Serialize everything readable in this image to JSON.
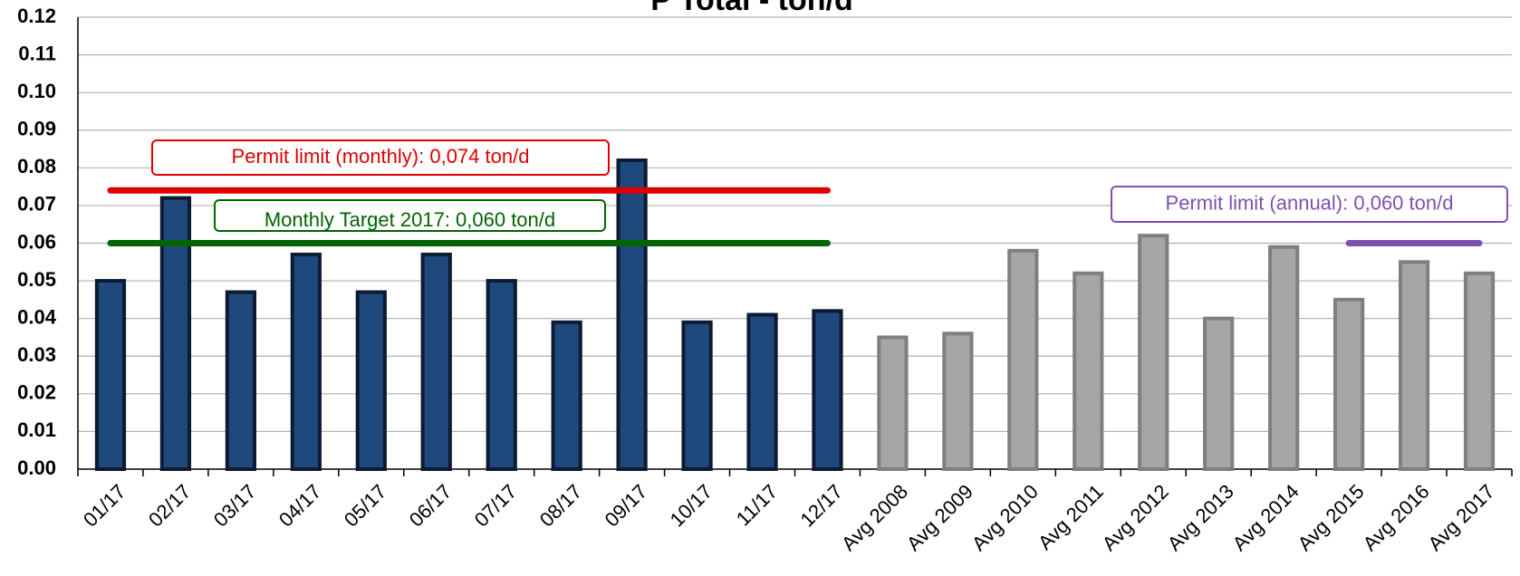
{
  "chart_data": {
    "type": "bar",
    "title": "P Total - ton/d",
    "categories": [
      "01/17",
      "02/17",
      "03/17",
      "04/17",
      "05/17",
      "06/17",
      "07/17",
      "08/17",
      "09/17",
      "10/17",
      "11/17",
      "12/17",
      "Avg 2008",
      "Avg 2009",
      "Avg 2010",
      "Avg 2011",
      "Avg 2012",
      "Avg 2013",
      "Avg 2014",
      "Avg 2015",
      "Avg 2016",
      "Avg 2017"
    ],
    "values": [
      0.05,
      0.072,
      0.047,
      0.057,
      0.047,
      0.057,
      0.05,
      0.039,
      0.082,
      0.039,
      0.041,
      0.042,
      0.035,
      0.036,
      0.058,
      0.052,
      0.062,
      0.04,
      0.059,
      0.045,
      0.055,
      0.052
    ],
    "colors": [
      "#1f497d",
      "#1f497d",
      "#1f497d",
      "#1f497d",
      "#1f497d",
      "#1f497d",
      "#1f497d",
      "#1f497d",
      "#1f497d",
      "#1f497d",
      "#1f497d",
      "#1f497d",
      "#a6a6a6",
      "#a6a6a6",
      "#a6a6a6",
      "#a6a6a6",
      "#a6a6a6",
      "#a6a6a6",
      "#a6a6a6",
      "#a6a6a6",
      "#a6a6a6",
      "#a6a6a6"
    ],
    "edge_colors": [
      "#0d1a33",
      "#0d1a33",
      "#0d1a33",
      "#0d1a33",
      "#0d1a33",
      "#0d1a33",
      "#0d1a33",
      "#0d1a33",
      "#0d1a33",
      "#0d1a33",
      "#0d1a33",
      "#0d1a33",
      "#7f7f7f",
      "#7f7f7f",
      "#7f7f7f",
      "#7f7f7f",
      "#7f7f7f",
      "#7f7f7f",
      "#7f7f7f",
      "#7f7f7f",
      "#7f7f7f",
      "#7f7f7f"
    ],
    "ylim": [
      0,
      0.12
    ],
    "yticks": [
      {
        "value": 0,
        "label": "0.00"
      },
      {
        "value": 0.01,
        "label": "0.01"
      },
      {
        "value": 0.02,
        "label": "0.02"
      },
      {
        "value": 0.03,
        "label": "0.03"
      },
      {
        "value": 0.04,
        "label": "0.04"
      },
      {
        "value": 0.05,
        "label": "0.05"
      },
      {
        "value": 0.06,
        "label": "0.06"
      },
      {
        "value": 0.07,
        "label": "0.07"
      },
      {
        "value": 0.08,
        "label": "0.08"
      },
      {
        "value": 0.09,
        "label": "0.09"
      },
      {
        "value": 0.1,
        "label": "0.10"
      },
      {
        "value": 0.11,
        "label": "0.11"
      },
      {
        "value": 0.12,
        "label": "0.12"
      }
    ],
    "grid": true,
    "reference_lines": [
      {
        "label": "Permit limit (monthly):  0,074 ton/d",
        "value": 0.074,
        "color": "#e00000",
        "from": "01/17",
        "to": "12/17"
      },
      {
        "label": "Monthly Target 2017: 0,060 ton/d",
        "value": 0.06,
        "color": "#006400",
        "from": "01/17",
        "to": "12/17"
      },
      {
        "label": "Permit limit (annual):  0,060 ton/d",
        "value": 0.06,
        "color": "#7f4fb0",
        "from": "Avg 2015",
        "to": "Avg 2017"
      }
    ]
  }
}
